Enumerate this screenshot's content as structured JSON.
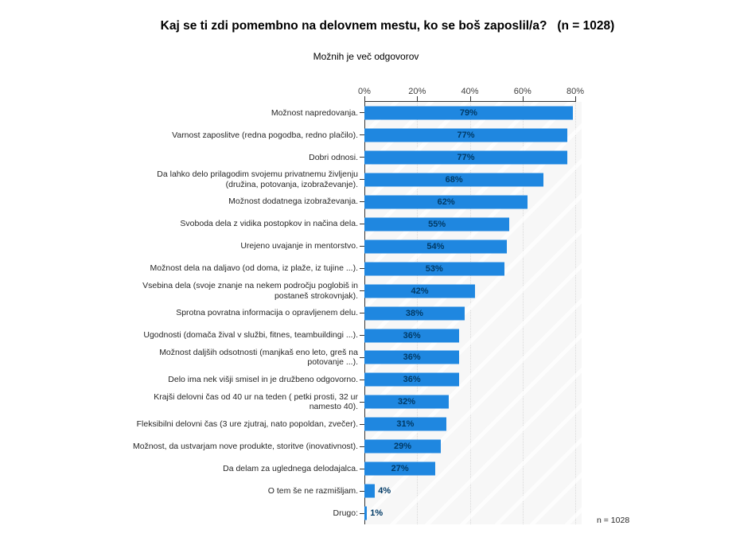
{
  "page": {
    "background": "#ffffff"
  },
  "chart_data": {
    "type": "bar",
    "orientation": "horizontal",
    "title": "Kaj se ti zdi pomembno na delovnem mestu, ko se boš zaposlil/a?   (n = 1028)",
    "subtitle": "Možnih je več odgovorov",
    "footnote": "n = 1028",
    "xlim": [
      0,
      80
    ],
    "x_ticks": [
      0,
      20,
      40,
      60,
      80
    ],
    "x_tick_labels": [
      "0%",
      "20%",
      "40%",
      "60%",
      "80%"
    ],
    "grid": "vertical dotted gridlines, light gray plot background",
    "legend": "none",
    "bar_color": "#1f87e0",
    "value_label_color": "#003a66",
    "categories": [
      "Možnost napredovanja.",
      "Varnost zaposlitve (redna pogodba, redno plačilo).",
      "Dobri odnosi.",
      "Da lahko delo prilagodim svojemu privatnemu življenju (družina, potovanja, izobraževanje).",
      "Možnost dodatnega izobraževanja.",
      "Svoboda dela z vidika postopkov in načina dela.",
      "Urejeno uvajanje in mentorstvo.",
      "Možnost dela na daljavo (od doma, iz plaže, iz tujine ...).",
      "Vsebina dela (svoje znanje na nekem področju poglobiš in postaneš strokovnjak).",
      "Sprotna povratna informacija o opravljenem delu.",
      "Ugodnosti (domača žival v službi, fitnes, teambuildingi ...).",
      "Možnost daljših odsotnosti (manjkaš eno leto, greš na potovanje ...).",
      "Delo ima nek višji smisel in je družbeno odgovorno.",
      "Krajši delovni čas od 40 ur na teden ( petki prosti, 32 ur namesto 40).",
      "Fleksibilni delovni čas (3 ure zjutraj, nato popoldan, zvečer).",
      "Možnost, da ustvarjam nove produkte, storitve (inovativnost).",
      "Da delam za uglednega delodajalca.",
      "O tem še ne razmišljam.",
      "Drugo:"
    ],
    "values": [
      79,
      77,
      77,
      68,
      62,
      55,
      54,
      53,
      42,
      38,
      36,
      36,
      36,
      32,
      31,
      29,
      27,
      4,
      1
    ],
    "value_labels": [
      "79%",
      "77%",
      "77%",
      "68%",
      "62%",
      "55%",
      "54%",
      "53%",
      "42%",
      "38%",
      "36%",
      "36%",
      "36%",
      "32%",
      "31%",
      "29%",
      "27%",
      "4%",
      "1%"
    ]
  }
}
